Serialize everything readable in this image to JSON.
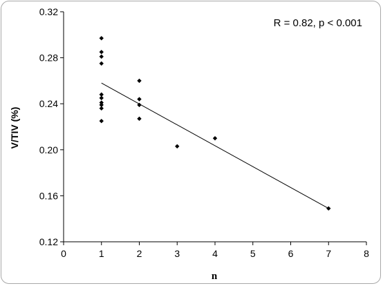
{
  "chart_data": {
    "type": "scatter",
    "title": "",
    "xlabel": "n",
    "ylabel": "V/TIV  (%)",
    "annotation": "R = 0.82, p < 0.001",
    "xlim": [
      0,
      8
    ],
    "ylim": [
      0.12,
      0.32
    ],
    "xticks": [
      0,
      1,
      2,
      3,
      4,
      5,
      6,
      7,
      8
    ],
    "yticks": [
      0.12,
      0.16,
      0.2,
      0.24,
      0.28,
      0.32
    ],
    "xtick_labels": [
      "0",
      "1",
      "2",
      "3",
      "4",
      "5",
      "6",
      "7",
      "8"
    ],
    "ytick_labels": [
      "0.12",
      "0.16",
      "0.20",
      "0.24",
      "0.28",
      "0.32"
    ],
    "grid": false,
    "points": [
      {
        "x": 1,
        "y": 0.297
      },
      {
        "x": 1,
        "y": 0.285
      },
      {
        "x": 1,
        "y": 0.281
      },
      {
        "x": 1,
        "y": 0.275
      },
      {
        "x": 1,
        "y": 0.248
      },
      {
        "x": 1,
        "y": 0.245
      },
      {
        "x": 1,
        "y": 0.241
      },
      {
        "x": 1,
        "y": 0.239
      },
      {
        "x": 1,
        "y": 0.236
      },
      {
        "x": 1,
        "y": 0.225
      },
      {
        "x": 2,
        "y": 0.26
      },
      {
        "x": 2,
        "y": 0.244
      },
      {
        "x": 2,
        "y": 0.239
      },
      {
        "x": 2,
        "y": 0.227
      },
      {
        "x": 3,
        "y": 0.203
      },
      {
        "x": 4,
        "y": 0.21
      },
      {
        "x": 7,
        "y": 0.149
      }
    ],
    "trendline": {
      "x": [
        1,
        7
      ],
      "y": [
        0.258,
        0.149
      ]
    }
  }
}
